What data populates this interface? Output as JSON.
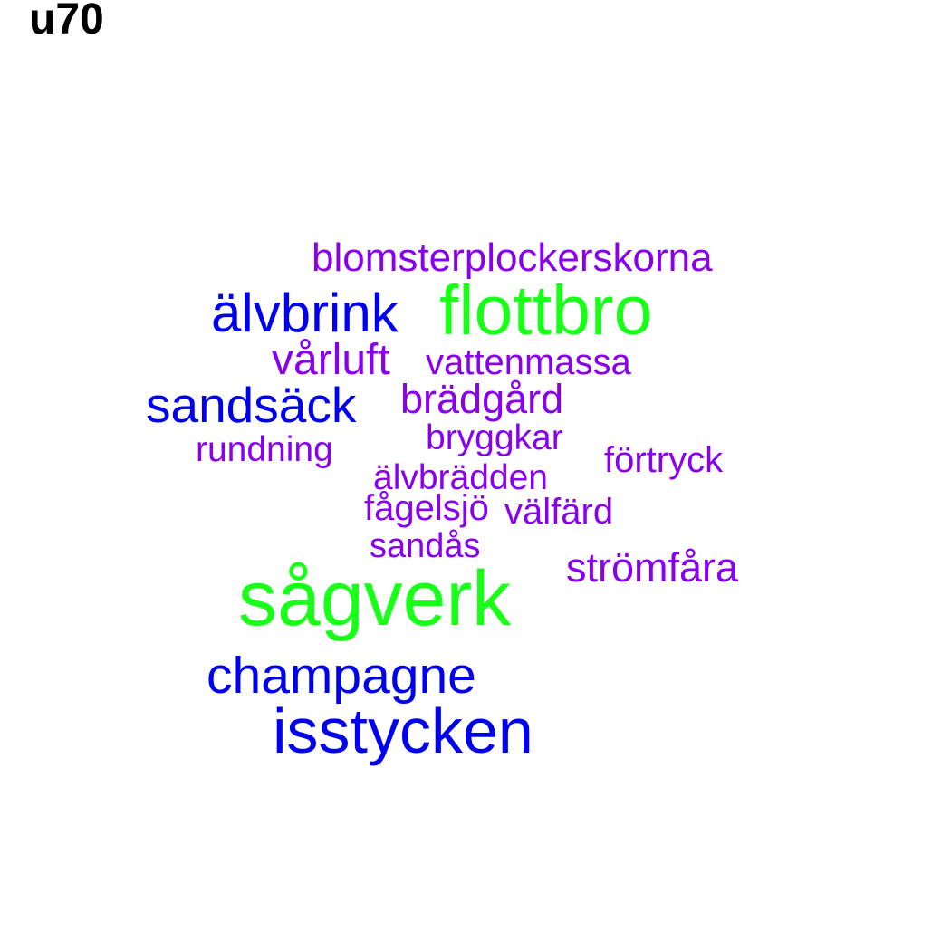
{
  "title": "u70",
  "colors": {
    "green": "#1aff1a",
    "blue": "#0000ee",
    "purple": "#8800ee"
  },
  "words": [
    {
      "text": "blomsterplockerskorna",
      "color": "#8800ee"
    },
    {
      "text": "älvbrink",
      "color": "#0000ee"
    },
    {
      "text": "flottbro",
      "color": "#1aff1a"
    },
    {
      "text": "vårluft",
      "color": "#8800ee"
    },
    {
      "text": "vattenmassa",
      "color": "#8800ee"
    },
    {
      "text": "sandsäck",
      "color": "#0000ee"
    },
    {
      "text": "brädgård",
      "color": "#8800ee"
    },
    {
      "text": "bryggkar",
      "color": "#8800ee"
    },
    {
      "text": "rundning",
      "color": "#8800ee"
    },
    {
      "text": "förtryck",
      "color": "#8800ee"
    },
    {
      "text": "älvbrädden",
      "color": "#8800ee"
    },
    {
      "text": "fågelsjö",
      "color": "#8800ee"
    },
    {
      "text": "välfärd",
      "color": "#8800ee"
    },
    {
      "text": "sandås",
      "color": "#8800ee"
    },
    {
      "text": "strömfåra",
      "color": "#8800ee"
    },
    {
      "text": "sågverk",
      "color": "#1aff1a"
    },
    {
      "text": "champagne",
      "color": "#0000ee"
    },
    {
      "text": "isstycken",
      "color": "#0000ee"
    }
  ]
}
